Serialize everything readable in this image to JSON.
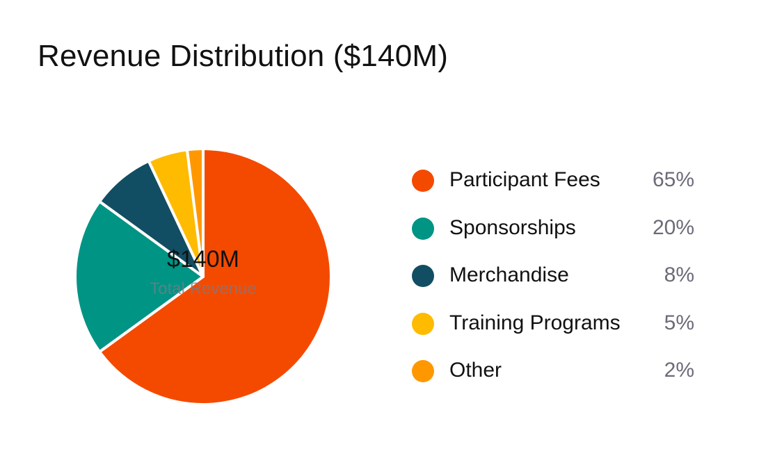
{
  "chart_data": {
    "type": "pie",
    "title": "Revenue Distribution ($140M)",
    "center_value": "$140M",
    "center_label": "Total Revenue",
    "categories": [
      "Participant Fees",
      "Sponsorships",
      "Merchandise",
      "Training Programs",
      "Other"
    ],
    "values": [
      65,
      20,
      8,
      5,
      2
    ],
    "value_labels": [
      "65%",
      "20%",
      "8%",
      "5%",
      "2%"
    ],
    "colors": [
      "#f44a00",
      "#009485",
      "#124e63",
      "#ffbb00",
      "#ff9800"
    ],
    "legend_position": "right"
  }
}
